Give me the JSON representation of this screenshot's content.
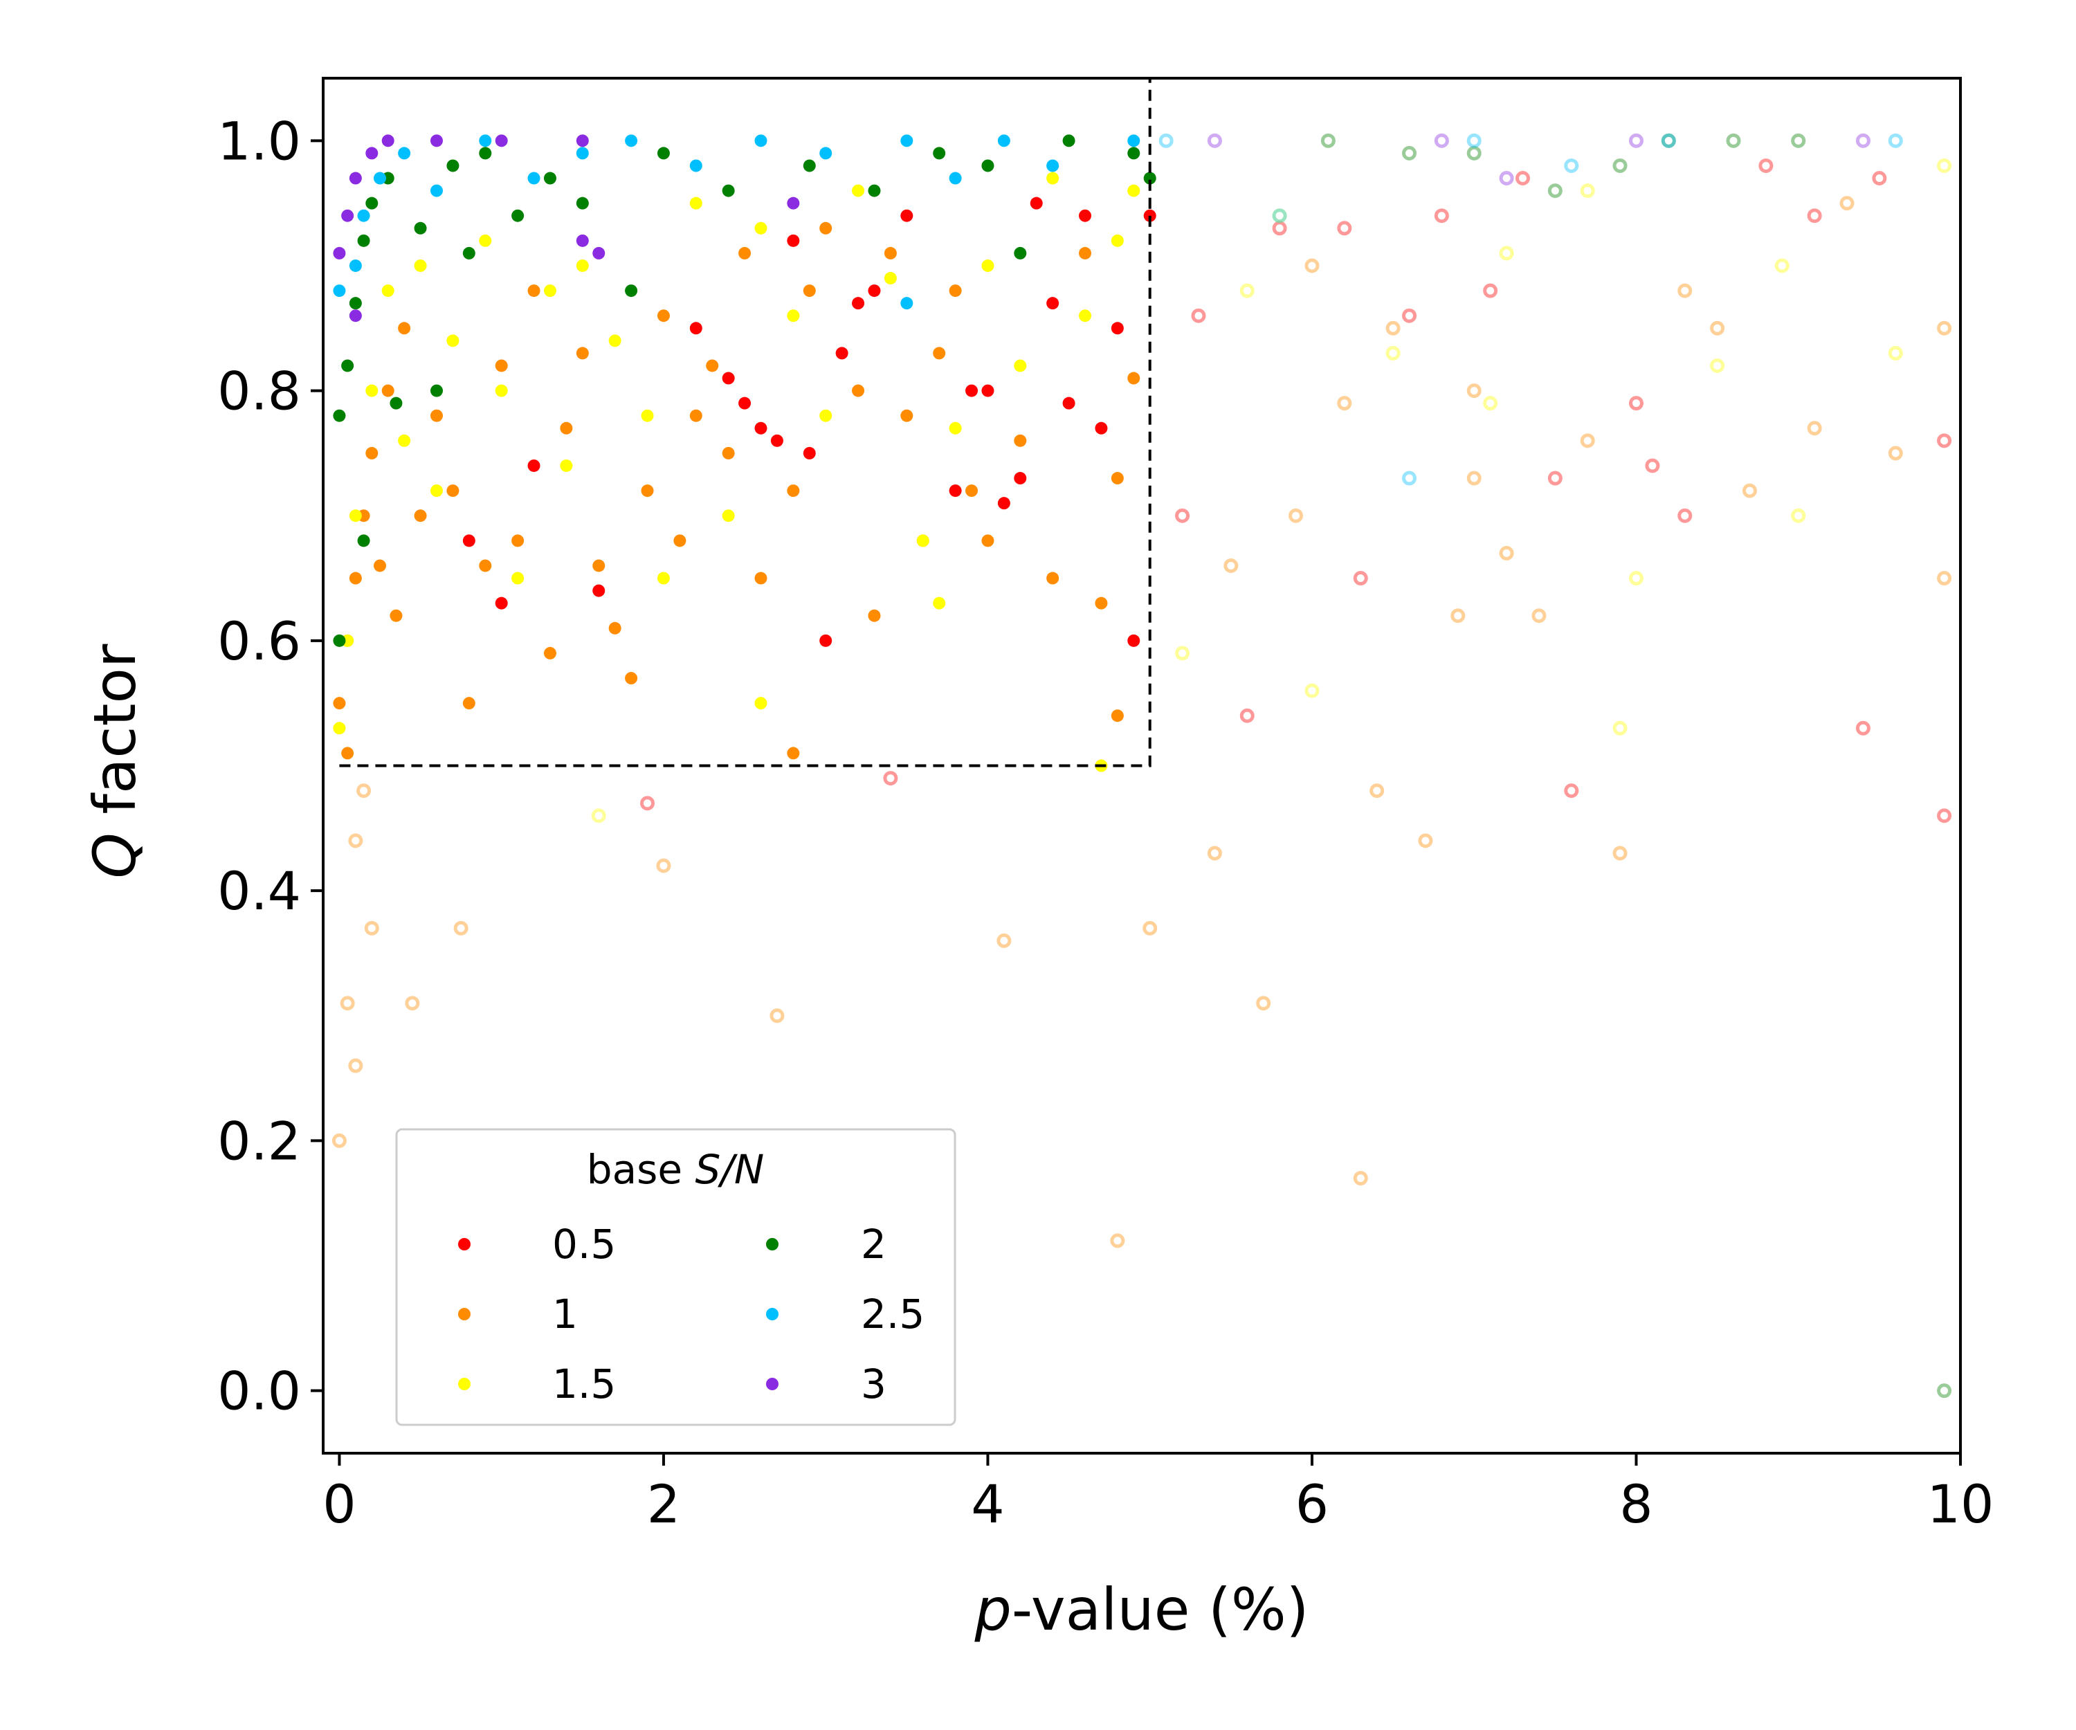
{
  "chart_data": {
    "type": "scatter",
    "xlabel_italic": "p",
    "xlabel_rest": "-value (%)",
    "ylabel_italic": "Q",
    "ylabel_rest": " factor",
    "xlim": [
      -0.1,
      10
    ],
    "ylim": [
      -0.05,
      1.05
    ],
    "xticks": [
      0,
      2,
      4,
      6,
      8,
      10
    ],
    "xtick_labels": [
      "0",
      "2",
      "4",
      "6",
      "8",
      "10"
    ],
    "yticks": [
      0.0,
      0.2,
      0.4,
      0.6,
      0.8,
      1.0
    ],
    "ytick_labels": [
      "0.0",
      "0.2",
      "0.4",
      "0.6",
      "0.8",
      "1.0"
    ],
    "grid": false,
    "significance_box": {
      "x": [
        0,
        5
      ],
      "y": [
        0.5,
        1.05
      ],
      "style": "dashed"
    },
    "marker_style": "solid inside box (p < 5%, Q > 0.5), faded hollow outside",
    "legend": {
      "title_plain": "base ",
      "title_italic": "S/N",
      "placement": "lower-left",
      "columns": 2,
      "entries": [
        "0.5",
        "1",
        "1.5",
        "2",
        "2.5",
        "3"
      ]
    },
    "series": [
      {
        "label": "0.5",
        "color": "#ff0000",
        "points": [
          [
            1.2,
            0.74
          ],
          [
            1.0,
            0.63
          ],
          [
            0.8,
            0.68
          ],
          [
            1.6,
            0.64
          ],
          [
            2.2,
            0.85
          ],
          [
            2.5,
            0.79
          ],
          [
            2.6,
            0.77
          ],
          [
            2.7,
            0.76
          ],
          [
            2.9,
            0.75
          ],
          [
            3.0,
            0.6
          ],
          [
            3.1,
            0.83
          ],
          [
            3.2,
            0.87
          ],
          [
            3.5,
            0.94
          ],
          [
            3.8,
            0.72
          ],
          [
            3.9,
            0.8
          ],
          [
            4.0,
            0.8
          ],
          [
            4.1,
            0.71
          ],
          [
            4.2,
            0.73
          ],
          [
            4.3,
            0.95
          ],
          [
            4.4,
            0.87
          ],
          [
            4.5,
            0.79
          ],
          [
            4.6,
            0.94
          ],
          [
            4.7,
            0.77
          ],
          [
            4.8,
            0.85
          ],
          [
            5.0,
            0.94
          ],
          [
            2.4,
            0.81
          ],
          [
            3.3,
            0.88
          ],
          [
            2.8,
            0.92
          ],
          [
            4.9,
            0.6
          ],
          [
            5.2,
            0.7
          ],
          [
            5.6,
            0.54
          ],
          [
            6.3,
            0.65
          ],
          [
            6.6,
            0.86
          ],
          [
            7.1,
            0.88
          ],
          [
            7.5,
            0.73
          ],
          [
            7.6,
            0.48
          ],
          [
            8.0,
            0.79
          ],
          [
            8.1,
            0.74
          ],
          [
            8.3,
            0.7
          ],
          [
            8.8,
            0.98
          ],
          [
            9.4,
            0.53
          ],
          [
            9.9,
            0.46
          ],
          [
            9.9,
            0.76
          ],
          [
            6.2,
            0.93
          ],
          [
            6.8,
            0.94
          ],
          [
            7.3,
            0.97
          ],
          [
            9.1,
            0.94
          ],
          [
            9.5,
            0.97
          ],
          [
            5.3,
            0.86
          ],
          [
            5.8,
            0.93
          ],
          [
            1.9,
            0.47
          ],
          [
            3.4,
            0.49
          ]
        ]
      },
      {
        "label": "1",
        "color": "#ff8c00",
        "points": [
          [
            0.0,
            0.55
          ],
          [
            0.05,
            0.6
          ],
          [
            0.1,
            0.65
          ],
          [
            0.15,
            0.7
          ],
          [
            0.2,
            0.75
          ],
          [
            0.25,
            0.66
          ],
          [
            0.3,
            0.8
          ],
          [
            0.35,
            0.62
          ],
          [
            0.4,
            0.85
          ],
          [
            0.5,
            0.7
          ],
          [
            0.6,
            0.78
          ],
          [
            0.7,
            0.72
          ],
          [
            0.8,
            0.55
          ],
          [
            0.9,
            0.66
          ],
          [
            1.0,
            0.82
          ],
          [
            1.1,
            0.68
          ],
          [
            1.2,
            0.88
          ],
          [
            1.3,
            0.59
          ],
          [
            1.4,
            0.77
          ],
          [
            1.5,
            0.83
          ],
          [
            1.6,
            0.66
          ],
          [
            1.7,
            0.61
          ],
          [
            1.8,
            0.57
          ],
          [
            1.9,
            0.72
          ],
          [
            2.0,
            0.86
          ],
          [
            2.1,
            0.68
          ],
          [
            2.2,
            0.78
          ],
          [
            2.3,
            0.82
          ],
          [
            2.4,
            0.75
          ],
          [
            2.5,
            0.91
          ],
          [
            2.6,
            0.65
          ],
          [
            2.8,
            0.72
          ],
          [
            2.9,
            0.88
          ],
          [
            3.0,
            0.93
          ],
          [
            3.2,
            0.8
          ],
          [
            3.3,
            0.62
          ],
          [
            3.4,
            0.91
          ],
          [
            3.5,
            0.78
          ],
          [
            3.6,
            0.68
          ],
          [
            3.7,
            0.83
          ],
          [
            3.8,
            0.88
          ],
          [
            3.9,
            0.72
          ],
          [
            4.0,
            0.68
          ],
          [
            4.2,
            0.76
          ],
          [
            4.4,
            0.65
          ],
          [
            4.6,
            0.91
          ],
          [
            4.7,
            0.63
          ],
          [
            4.8,
            0.73
          ],
          [
            4.9,
            0.81
          ],
          [
            4.8,
            0.54
          ],
          [
            2.8,
            0.51
          ],
          [
            0.05,
            0.51
          ],
          [
            0.15,
            0.48
          ],
          [
            0.1,
            0.44
          ],
          [
            0.2,
            0.37
          ],
          [
            0.05,
            0.31
          ],
          [
            0.1,
            0.26
          ],
          [
            0.0,
            0.2
          ],
          [
            0.75,
            0.37
          ],
          [
            0.45,
            0.31
          ],
          [
            2.0,
            0.42
          ],
          [
            2.7,
            0.3
          ],
          [
            4.1,
            0.36
          ],
          [
            4.8,
            0.12
          ],
          [
            5.0,
            0.37
          ],
          [
            5.5,
            0.66
          ],
          [
            5.7,
            0.31
          ],
          [
            5.9,
            0.7
          ],
          [
            6.2,
            0.79
          ],
          [
            6.3,
            0.17
          ],
          [
            6.5,
            0.85
          ],
          [
            6.7,
            0.44
          ],
          [
            6.9,
            0.62
          ],
          [
            7.0,
            0.73
          ],
          [
            7.2,
            0.67
          ],
          [
            7.4,
            0.62
          ],
          [
            7.7,
            0.76
          ],
          [
            7.9,
            0.43
          ],
          [
            8.3,
            0.88
          ],
          [
            8.7,
            0.72
          ],
          [
            9.1,
            0.77
          ],
          [
            9.6,
            0.75
          ],
          [
            9.9,
            0.85
          ],
          [
            9.9,
            0.65
          ],
          [
            6.0,
            0.9
          ],
          [
            7.0,
            0.8
          ],
          [
            8.5,
            0.85
          ],
          [
            9.3,
            0.95
          ],
          [
            5.4,
            0.43
          ],
          [
            6.4,
            0.48
          ]
        ]
      },
      {
        "label": "1.5",
        "color": "#ffff00",
        "points": [
          [
            0.0,
            0.53
          ],
          [
            0.05,
            0.6
          ],
          [
            0.1,
            0.7
          ],
          [
            0.2,
            0.8
          ],
          [
            0.3,
            0.88
          ],
          [
            0.4,
            0.76
          ],
          [
            0.5,
            0.9
          ],
          [
            0.6,
            0.72
          ],
          [
            0.7,
            0.84
          ],
          [
            0.9,
            0.92
          ],
          [
            1.0,
            0.8
          ],
          [
            1.1,
            0.65
          ],
          [
            1.3,
            0.88
          ],
          [
            1.4,
            0.74
          ],
          [
            1.5,
            0.9
          ],
          [
            1.7,
            0.84
          ],
          [
            1.9,
            0.78
          ],
          [
            2.0,
            0.65
          ],
          [
            2.2,
            0.95
          ],
          [
            2.4,
            0.7
          ],
          [
            2.6,
            0.93
          ],
          [
            2.8,
            0.86
          ],
          [
            3.0,
            0.78
          ],
          [
            3.2,
            0.96
          ],
          [
            3.4,
            0.89
          ],
          [
            3.6,
            0.68
          ],
          [
            3.7,
            0.63
          ],
          [
            3.8,
            0.77
          ],
          [
            4.0,
            0.9
          ],
          [
            4.2,
            0.82
          ],
          [
            4.4,
            0.97
          ],
          [
            4.6,
            0.86
          ],
          [
            4.8,
            0.92
          ],
          [
            4.9,
            0.96
          ],
          [
            2.6,
            0.55
          ],
          [
            1.6,
            0.46
          ],
          [
            4.7,
            0.5
          ],
          [
            5.2,
            0.59
          ],
          [
            5.6,
            0.88
          ],
          [
            6.0,
            0.56
          ],
          [
            6.5,
            0.83
          ],
          [
            7.1,
            0.79
          ],
          [
            7.7,
            0.96
          ],
          [
            7.9,
            0.53
          ],
          [
            8.5,
            0.82
          ],
          [
            9.0,
            0.7
          ],
          [
            9.6,
            0.83
          ],
          [
            9.9,
            0.98
          ],
          [
            5.8,
            0.94
          ],
          [
            7.2,
            0.91
          ],
          [
            8.0,
            0.65
          ],
          [
            8.9,
            0.9
          ]
        ]
      },
      {
        "label": "2",
        "color": "#008000",
        "points": [
          [
            0.0,
            0.78
          ],
          [
            0.05,
            0.82
          ],
          [
            0.1,
            0.87
          ],
          [
            0.15,
            0.92
          ],
          [
            0.2,
            0.95
          ],
          [
            0.3,
            0.97
          ],
          [
            0.35,
            0.79
          ],
          [
            0.5,
            0.93
          ],
          [
            0.6,
            0.8
          ],
          [
            0.7,
            0.98
          ],
          [
            0.8,
            0.91
          ],
          [
            0.9,
            0.99
          ],
          [
            1.1,
            0.94
          ],
          [
            1.3,
            0.97
          ],
          [
            1.5,
            0.95
          ],
          [
            1.8,
            0.88
          ],
          [
            2.0,
            0.99
          ],
          [
            2.4,
            0.96
          ],
          [
            2.9,
            0.98
          ],
          [
            3.3,
            0.96
          ],
          [
            3.7,
            0.99
          ],
          [
            4.0,
            0.98
          ],
          [
            4.2,
            0.91
          ],
          [
            4.5,
            1.0
          ],
          [
            4.9,
            0.99
          ],
          [
            5.0,
            0.97
          ],
          [
            0.0,
            0.6
          ],
          [
            0.15,
            0.68
          ],
          [
            6.1,
            1.0
          ],
          [
            6.6,
            0.99
          ],
          [
            7.0,
            0.99
          ],
          [
            7.5,
            0.96
          ],
          [
            7.9,
            0.98
          ],
          [
            8.2,
            1.0
          ],
          [
            8.6,
            1.0
          ],
          [
            9.0,
            1.0
          ],
          [
            9.9,
            0.0
          ]
        ]
      },
      {
        "label": "2.5",
        "color": "#00bfff",
        "points": [
          [
            0.0,
            0.88
          ],
          [
            0.1,
            0.9
          ],
          [
            0.15,
            0.94
          ],
          [
            0.25,
            0.97
          ],
          [
            0.4,
            0.99
          ],
          [
            0.6,
            0.96
          ],
          [
            0.9,
            1.0
          ],
          [
            1.2,
            0.97
          ],
          [
            1.5,
            0.99
          ],
          [
            1.8,
            1.0
          ],
          [
            2.2,
            0.98
          ],
          [
            2.6,
            1.0
          ],
          [
            3.0,
            0.99
          ],
          [
            3.5,
            1.0
          ],
          [
            3.5,
            0.87
          ],
          [
            3.8,
            0.97
          ],
          [
            4.1,
            1.0
          ],
          [
            4.4,
            0.98
          ],
          [
            4.9,
            1.0
          ],
          [
            5.1,
            1.0
          ],
          [
            5.8,
            0.94
          ],
          [
            6.6,
            0.73
          ],
          [
            7.0,
            1.0
          ],
          [
            7.6,
            0.98
          ],
          [
            8.2,
            1.0
          ],
          [
            9.6,
            1.0
          ]
        ]
      },
      {
        "label": "3",
        "color": "#8a2be2",
        "points": [
          [
            0.0,
            0.91
          ],
          [
            0.05,
            0.94
          ],
          [
            0.1,
            0.97
          ],
          [
            0.2,
            0.99
          ],
          [
            0.3,
            1.0
          ],
          [
            0.6,
            1.0
          ],
          [
            1.0,
            1.0
          ],
          [
            1.5,
            1.0
          ],
          [
            1.6,
            0.91
          ],
          [
            1.5,
            0.92
          ],
          [
            2.8,
            0.95
          ],
          [
            0.1,
            0.86
          ],
          [
            5.4,
            1.0
          ],
          [
            6.8,
            1.0
          ],
          [
            7.2,
            0.97
          ],
          [
            8.0,
            1.0
          ],
          [
            9.4,
            1.0
          ]
        ]
      }
    ]
  }
}
